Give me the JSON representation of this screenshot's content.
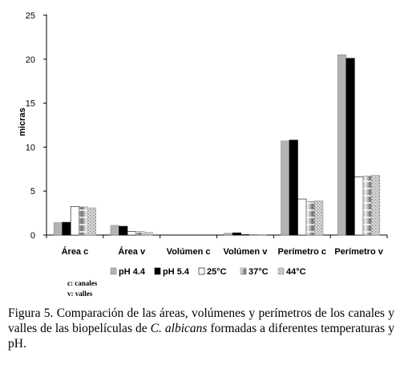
{
  "chart_data": {
    "type": "bar",
    "ylabel": "micras",
    "xlabel": "",
    "ylim": [
      0,
      25
    ],
    "yticks": [
      0,
      5,
      10,
      15,
      20,
      25
    ],
    "grid": false,
    "legend_position": "bottom",
    "categories": [
      "Área c",
      "Área v",
      "Volúmen c",
      "Volúmen v",
      "Perímetro c",
      "Perímetro v"
    ],
    "series": [
      {
        "name": "pH 4.4",
        "values": [
          1.4,
          1.1,
          0.0,
          0.2,
          10.7,
          20.5
        ]
      },
      {
        "name": "pH 5.4",
        "values": [
          1.45,
          1.0,
          0.0,
          0.25,
          10.8,
          20.1
        ]
      },
      {
        "name": "25°C",
        "values": [
          3.25,
          0.4,
          0.0,
          0.05,
          4.1,
          6.6
        ]
      },
      {
        "name": "37°C",
        "values": [
          3.2,
          0.4,
          0.0,
          0.05,
          3.8,
          6.7
        ]
      },
      {
        "name": "44°C",
        "values": [
          3.1,
          0.3,
          0.0,
          0.05,
          3.9,
          6.8
        ]
      }
    ],
    "colors": {
      "pH 4.4": "#b3b3b3",
      "pH 5.4": "#000000",
      "25°C": "#ffffff",
      "37°C": "#8c8c8c",
      "44°C": "#cfcfcf"
    }
  },
  "notes": [
    "c: canales",
    "v: valles"
  ],
  "caption": {
    "part1": "Figura 5. Comparación de las áreas, volúmenes y perímetros de los canales y valles de las biopelículas de ",
    "species": "C. albicans",
    "part2": " formadas a diferentes temperaturas y pH."
  }
}
